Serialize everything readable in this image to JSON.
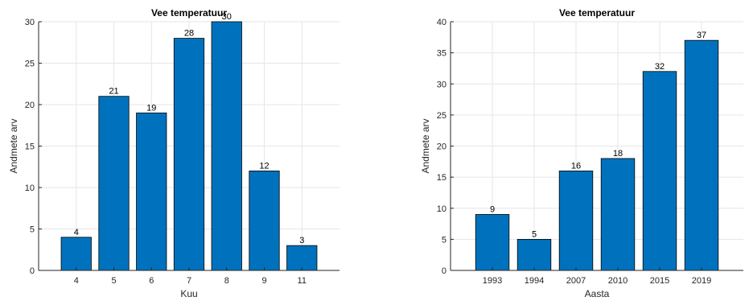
{
  "chart_data": [
    {
      "type": "bar",
      "title": "Vee temperatuur",
      "xlabel": "Kuu",
      "ylabel": "Andmete arv",
      "categories": [
        "4",
        "5",
        "6",
        "7",
        "8",
        "9",
        "11"
      ],
      "values": [
        4,
        21,
        19,
        28,
        30,
        12,
        3
      ],
      "data_labels": [
        "4",
        "21",
        "19",
        "28",
        "30",
        "12",
        "3"
      ],
      "ylim": [
        0,
        30
      ],
      "yticks": [
        0,
        5,
        10,
        15,
        20,
        25,
        30
      ],
      "grid": true,
      "bar_color": "#0072BD"
    },
    {
      "type": "bar",
      "title": "Vee temperatuur",
      "xlabel": "Aasta",
      "ylabel": "Andmete arv",
      "categories": [
        "1993",
        "1994",
        "2007",
        "2010",
        "2015",
        "2019"
      ],
      "values": [
        9,
        5,
        16,
        18,
        32,
        37
      ],
      "data_labels": [
        "9",
        "5",
        "16",
        "18",
        "32",
        "37"
      ],
      "ylim": [
        0,
        40
      ],
      "yticks": [
        0,
        5,
        10,
        15,
        20,
        25,
        30,
        35,
        40
      ],
      "grid": true,
      "bar_color": "#0072BD"
    }
  ]
}
